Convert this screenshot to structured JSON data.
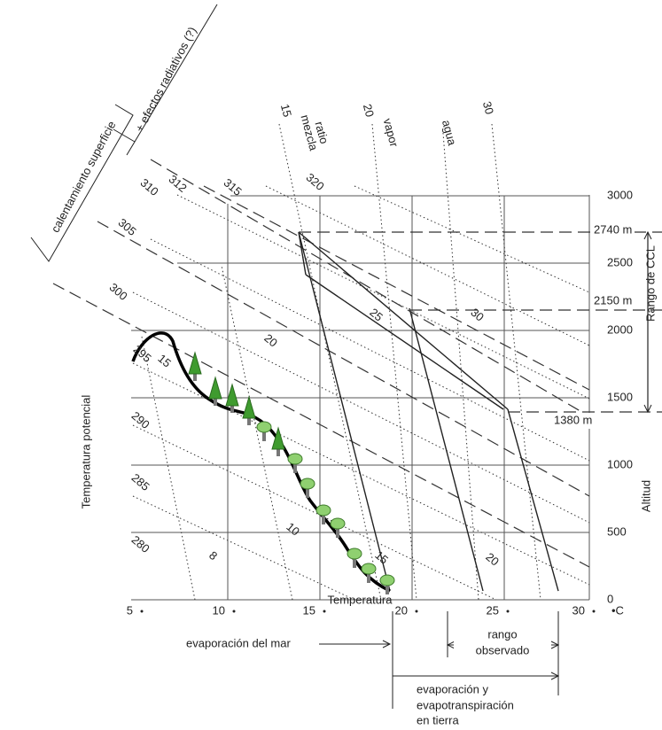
{
  "x_axis": {
    "title": "Temperatura",
    "ticks": [
      "5",
      "10",
      "15",
      "20",
      "25",
      "30"
    ],
    "unit": "•C"
  },
  "potential_temperature_axis": {
    "title": "Temperatura potencial",
    "ticks": [
      "280",
      "285",
      "290",
      "295",
      "300",
      "305",
      "310",
      "312",
      "315",
      "320"
    ]
  },
  "altitude_axis": {
    "title": "Altitud",
    "ticks": [
      "0",
      "500",
      "1000",
      "1500",
      "2000",
      "2500",
      "3000"
    ]
  },
  "levels": [
    "2740 m",
    "2150 m",
    "1380 m"
  ],
  "ccl_range": "Rango de CCL",
  "isoline_labels": [
    "15",
    "20",
    "30",
    "15",
    "20",
    "25",
    "30",
    "8",
    "10",
    "15",
    "20"
  ],
  "line_names": [
    "ratio",
    "mezcla",
    "vapor",
    "agua"
  ],
  "heating": [
    "calentamiento superficie",
    "+ efectos radiativos (?)"
  ],
  "annotations": {
    "sea": "evaporación del mar",
    "observed": [
      "rango",
      "observado"
    ],
    "land": [
      "evaporación y",
      "evapotranspiración",
      "en tierra"
    ]
  }
}
